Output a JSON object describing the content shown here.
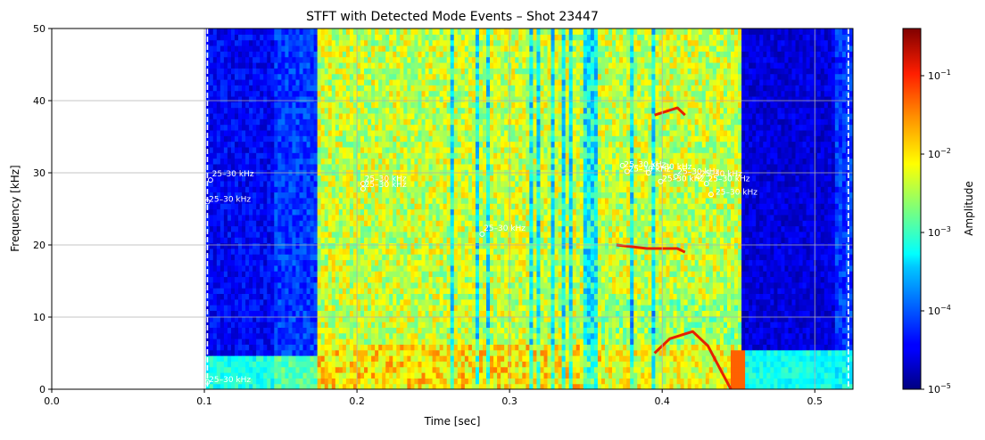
{
  "chart_data": {
    "type": "heatmap",
    "title": "STFT with Detected Mode Events – Shot 23447",
    "xlabel": "Time [sec]",
    "ylabel": "Frequency [kHz]",
    "xlim": [
      0.0,
      0.525
    ],
    "ylim": [
      0,
      50
    ],
    "x_ticks": [
      {
        "value": 0.0,
        "label": "0.0"
      },
      {
        "value": 0.1,
        "label": "0.1"
      },
      {
        "value": 0.2,
        "label": "0.2"
      },
      {
        "value": 0.3,
        "label": "0.3"
      },
      {
        "value": 0.4,
        "label": "0.4"
      },
      {
        "value": 0.5,
        "label": "0.5"
      }
    ],
    "y_ticks": [
      {
        "value": 0,
        "label": "0"
      },
      {
        "value": 10,
        "label": "10"
      },
      {
        "value": 20,
        "label": "20"
      },
      {
        "value": 30,
        "label": "30"
      },
      {
        "value": 40,
        "label": "40"
      },
      {
        "value": 50,
        "label": "50"
      }
    ],
    "grid": true,
    "colormap": "jet",
    "color_scale": "log",
    "colorbar": {
      "label": "Amplitude",
      "range": [
        1e-05,
        0.4
      ],
      "ticks": [
        {
          "exp": -5,
          "base": "10",
          "sup": "−5"
        },
        {
          "exp": -4,
          "base": "10",
          "sup": "−4"
        },
        {
          "exp": -3,
          "base": "10",
          "sup": "−3"
        },
        {
          "exp": -2,
          "base": "10",
          "sup": "−2"
        },
        {
          "exp": -1,
          "base": "10",
          "sup": "−1"
        }
      ]
    },
    "vertical_lines": [
      {
        "x": 0.102,
        "style": "dashed",
        "color": "#ffffff"
      },
      {
        "x": 0.522,
        "style": "dashed",
        "color": "#ffffff"
      }
    ],
    "data_start_time": 0.101,
    "ridges": [
      {
        "points": [
          [
            0.395,
            38.0
          ],
          [
            0.41,
            39.0
          ],
          [
            0.415,
            38.0
          ]
        ]
      },
      {
        "points": [
          [
            0.37,
            20.0
          ],
          [
            0.39,
            19.5
          ],
          [
            0.41,
            19.5
          ],
          [
            0.415,
            19.0
          ]
        ]
      },
      {
        "points": [
          [
            0.395,
            5.0
          ],
          [
            0.405,
            7.0
          ],
          [
            0.42,
            8.0
          ],
          [
            0.43,
            6.0
          ],
          [
            0.44,
            2.0
          ],
          [
            0.445,
            0.0
          ]
        ]
      }
    ],
    "annotations": [
      {
        "text": "25–30 kHz",
        "x": 0.105,
        "y": 29.5,
        "marker": [
          0.104,
          29.0
        ]
      },
      {
        "text": "25–30 kHz",
        "x": 0.103,
        "y": 26.0,
        "marker": [
          0.102,
          26.0
        ]
      },
      {
        "text": "25–30 kHz",
        "x": 0.103,
        "y": 1.0,
        "marker": [
          0.102,
          1.0
        ]
      },
      {
        "text": "25–30 kHz",
        "x": 0.205,
        "y": 28.8,
        "marker": [
          0.204,
          28.5
        ]
      },
      {
        "text": "25–30 kHz",
        "x": 0.205,
        "y": 28.0,
        "marker": [
          0.204,
          27.8
        ]
      },
      {
        "text": "25–30 kHz",
        "x": 0.283,
        "y": 22.0,
        "marker": [
          0.282,
          21.5
        ]
      },
      {
        "text": "25–30 kHz",
        "x": 0.375,
        "y": 30.8,
        "marker": [
          0.374,
          31.0
        ]
      },
      {
        "text": "25–30 kHz",
        "x": 0.378,
        "y": 30.2,
        "marker": [
          0.377,
          30.2
        ]
      },
      {
        "text": "25–30 kHz",
        "x": 0.392,
        "y": 30.5,
        "marker": [
          0.391,
          30.0
        ]
      },
      {
        "text": "25–30 kHz",
        "x": 0.41,
        "y": 29.8,
        "marker": [
          0.409,
          29.5
        ]
      },
      {
        "text": "25–30 kHz",
        "x": 0.4,
        "y": 28.8,
        "marker": [
          0.399,
          28.8
        ]
      },
      {
        "text": "25–30 kHz",
        "x": 0.425,
        "y": 29.5,
        "marker": [
          0.424,
          29.5
        ]
      },
      {
        "text": "25–30 kHz",
        "x": 0.43,
        "y": 28.8,
        "marker": [
          0.429,
          28.5
        ]
      },
      {
        "text": "25–30 kHz",
        "x": 0.435,
        "y": 27.0,
        "marker": [
          0.432,
          27.0
        ]
      }
    ]
  }
}
